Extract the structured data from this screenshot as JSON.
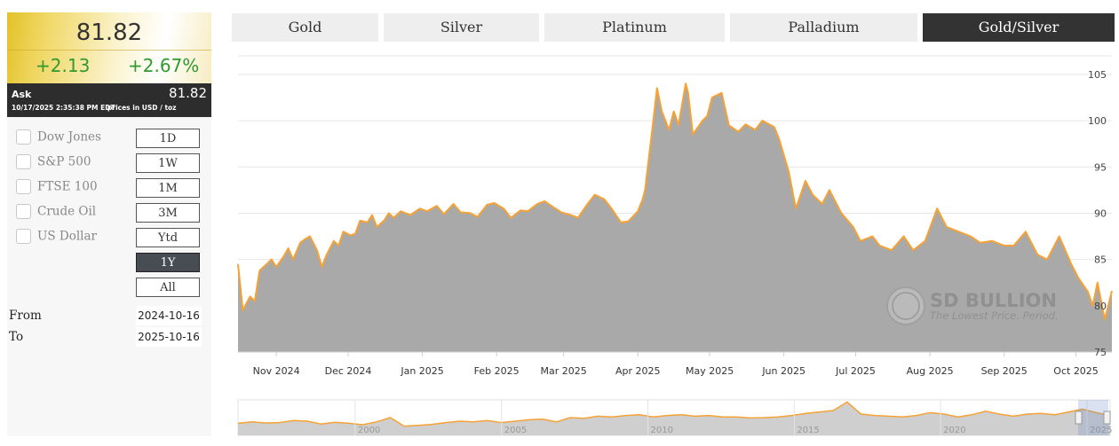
{
  "quote": {
    "price": "81.82",
    "change": "+2.13",
    "change_pct": "+2.67%",
    "ask_label": "Ask",
    "ask_value": "81.82",
    "timestamp": "10/17/2025 2:35:38 PM EDT",
    "units": "prices in USD / toz"
  },
  "tabs": [
    {
      "label": "Gold",
      "active": false
    },
    {
      "label": "Silver",
      "active": false
    },
    {
      "label": "Platinum",
      "active": false
    },
    {
      "label": "Palladium",
      "active": false
    },
    {
      "label": "Gold/Silver",
      "active": true
    }
  ],
  "indices": [
    {
      "label": "Dow Jones",
      "checked": false
    },
    {
      "label": "S&P 500",
      "checked": false
    },
    {
      "label": "FTSE 100",
      "checked": false
    },
    {
      "label": "Crude Oil",
      "checked": false
    },
    {
      "label": "US Dollar",
      "checked": false
    }
  ],
  "ranges": [
    {
      "label": "1D",
      "active": false
    },
    {
      "label": "1W",
      "active": false
    },
    {
      "label": "1M",
      "active": false
    },
    {
      "label": "3M",
      "active": false
    },
    {
      "label": "Ytd",
      "active": false
    },
    {
      "label": "1Y",
      "active": true
    },
    {
      "label": "All",
      "active": false
    }
  ],
  "date_range": {
    "from_label": "From",
    "from_value": "2024-10-16",
    "to_label": "To",
    "to_value": "2025-10-16"
  },
  "watermark": {
    "brand": "SD BULLION",
    "tagline": "The Lowest Price. Period."
  },
  "colors": {
    "series_line": "#f5a236",
    "series_fill": "#a9a9a9",
    "tab_active": "#333333",
    "change_positive": "#2f9a2f"
  },
  "chart_data": {
    "type": "area",
    "series": [
      {
        "x": [
          "2024-10-16",
          "2024-10-18",
          "2024-10-21",
          "2024-10-23",
          "2024-10-25",
          "2024-10-28",
          "2024-10-30",
          "2024-11-01",
          "2024-11-04",
          "2024-11-06",
          "2024-11-08",
          "2024-11-11",
          "2024-11-13",
          "2024-11-15",
          "2024-11-18",
          "2024-11-20",
          "2024-11-22",
          "2024-11-25",
          "2024-11-27",
          "2024-11-29",
          "2024-12-02",
          "2024-12-04",
          "2024-12-06",
          "2024-12-09",
          "2024-12-11",
          "2024-12-13",
          "2024-12-16",
          "2024-12-18",
          "2024-12-20",
          "2024-12-23",
          "2024-12-27",
          "2024-12-31",
          "2025-01-03",
          "2025-01-07",
          "2025-01-10",
          "2025-01-14",
          "2025-01-17",
          "2025-01-21",
          "2025-01-24",
          "2025-01-28",
          "2025-01-31",
          "2025-02-04",
          "2025-02-07",
          "2025-02-11",
          "2025-02-14",
          "2025-02-18",
          "2025-02-21",
          "2025-02-25",
          "2025-02-28",
          "2025-03-04",
          "2025-03-07",
          "2025-03-11",
          "2025-03-14",
          "2025-03-18",
          "2025-03-21",
          "2025-03-25",
          "2025-03-28",
          "2025-04-01",
          "2025-04-03",
          "2025-04-04",
          "2025-04-07",
          "2025-04-09",
          "2025-04-11",
          "2025-04-14",
          "2025-04-16",
          "2025-04-18",
          "2025-04-21",
          "2025-04-22",
          "2025-04-24",
          "2025-04-28",
          "2025-04-30",
          "2025-05-02",
          "2025-05-06",
          "2025-05-09",
          "2025-05-13",
          "2025-05-16",
          "2025-05-20",
          "2025-05-23",
          "2025-05-28",
          "2025-05-30",
          "2025-06-03",
          "2025-06-06",
          "2025-06-10",
          "2025-06-13",
          "2025-06-17",
          "2025-06-20",
          "2025-06-25",
          "2025-06-30",
          "2025-07-03",
          "2025-07-08",
          "2025-07-11",
          "2025-07-16",
          "2025-07-21",
          "2025-07-25",
          "2025-07-30",
          "2025-08-04",
          "2025-08-08",
          "2025-08-13",
          "2025-08-18",
          "2025-08-22",
          "2025-08-27",
          "2025-09-01",
          "2025-09-05",
          "2025-09-10",
          "2025-09-15",
          "2025-09-19",
          "2025-09-24",
          "2025-09-29",
          "2025-10-02",
          "2025-10-06",
          "2025-10-08",
          "2025-10-10",
          "2025-10-13",
          "2025-10-14",
          "2025-10-16"
        ],
        "y": [
          84.5,
          79.5,
          81.0,
          80.5,
          83.8,
          84.5,
          85.0,
          84.2,
          85.3,
          86.2,
          85.0,
          86.8,
          87.2,
          87.5,
          86.0,
          84.2,
          85.5,
          87.0,
          86.5,
          88.0,
          87.6,
          87.8,
          89.2,
          89.0,
          89.8,
          88.5,
          89.2,
          90.0,
          89.5,
          90.2,
          89.8,
          90.5,
          90.2,
          90.8,
          89.9,
          91.0,
          90.1,
          90.0,
          89.6,
          90.9,
          91.1,
          90.5,
          89.5,
          90.3,
          90.2,
          91.0,
          91.3,
          90.6,
          90.1,
          89.8,
          89.5,
          91.0,
          92.0,
          91.5,
          90.5,
          89.0,
          89.1,
          90.2,
          91.5,
          92.5,
          99.0,
          103.5,
          101.0,
          99.0,
          101.0,
          99.5,
          104.0,
          103.0,
          98.5,
          100.0,
          100.5,
          102.5,
          103.0,
          99.5,
          98.8,
          99.6,
          99.0,
          100.0,
          99.3,
          98.0,
          94.5,
          90.5,
          93.5,
          92.0,
          91.0,
          92.5,
          90.0,
          88.5,
          87.0,
          87.5,
          86.5,
          86.0,
          87.5,
          86.0,
          87.0,
          90.5,
          88.5,
          88.0,
          87.5,
          86.8,
          87.0,
          86.5,
          86.5,
          88.0,
          85.5,
          85.0,
          87.5,
          84.5,
          83.0,
          81.5,
          80.0,
          82.5,
          78.5,
          79.5,
          81.6
        ]
      }
    ],
    "ylim": [
      75,
      107
    ],
    "yticks": [
      75,
      80,
      85,
      90,
      95,
      100,
      105
    ],
    "xticks": [
      {
        "date": "2024-11-01",
        "label": "Nov 2024"
      },
      {
        "date": "2024-12-01",
        "label": "Dec 2024"
      },
      {
        "date": "2025-01-01",
        "label": "Jan 2025"
      },
      {
        "date": "2025-02-01",
        "label": "Feb 2025"
      },
      {
        "date": "2025-03-01",
        "label": "Mar 2025"
      },
      {
        "date": "2025-04-01",
        "label": "Apr 2025"
      },
      {
        "date": "2025-05-01",
        "label": "May 2025"
      },
      {
        "date": "2025-06-01",
        "label": "Jun 2025"
      },
      {
        "date": "2025-07-01",
        "label": "Jul 2025"
      },
      {
        "date": "2025-08-01",
        "label": "Aug 2025"
      },
      {
        "date": "2025-09-01",
        "label": "Sep 2025"
      },
      {
        "date": "2025-10-01",
        "label": "Oct 2025"
      }
    ],
    "y_axis_position": "right",
    "grid": true,
    "legend": false,
    "navigator": {
      "labels": [
        "2000",
        "2005",
        "2010",
        "2015",
        "2020",
        "2025"
      ],
      "x_range": [
        "1996-01-01",
        "2025-10-16"
      ],
      "ylim": [
        30,
        130
      ],
      "y": [
        64,
        68,
        65,
        66,
        72,
        70,
        62,
        67,
        64,
        60,
        68,
        80,
        56,
        58,
        61,
        66,
        70,
        68,
        72,
        66,
        70,
        74,
        76,
        68,
        80,
        78,
        84,
        82,
        86,
        88,
        82,
        86,
        88,
        84,
        86,
        82,
        82,
        79,
        80,
        82,
        86,
        92,
        96,
        100,
        124,
        90,
        86,
        84,
        82,
        86,
        94,
        90,
        82,
        88,
        98,
        90,
        84,
        90,
        92,
        88,
        96,
        104,
        94,
        86
      ]
    }
  }
}
